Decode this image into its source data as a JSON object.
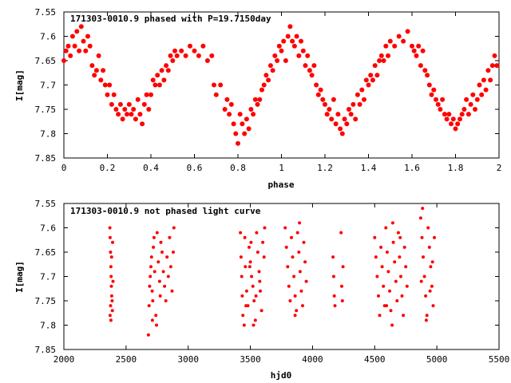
{
  "chart_data": [
    {
      "type": "scatter",
      "title": "171303-0010.9 phased with P=19.7150day",
      "xlabel": "phase",
      "ylabel": "I[mag]",
      "xlim": [
        0,
        2
      ],
      "ylim": [
        7.85,
        7.55
      ],
      "y_inverted": true,
      "xticks": [
        "0",
        "0.2",
        "0.4",
        "0.6",
        "0.8",
        "1",
        "1.2",
        "1.4",
        "1.6",
        "1.8",
        "2"
      ],
      "yticks": [
        "7.55",
        "7.6",
        "7.65",
        "7.7",
        "7.75",
        "7.8",
        "7.85"
      ],
      "marker_color": "#ff0000",
      "grid": false,
      "points": [
        [
          0.0,
          7.65
        ],
        [
          0.01,
          7.63
        ],
        [
          0.02,
          7.62
        ],
        [
          0.03,
          7.64
        ],
        [
          0.04,
          7.6
        ],
        [
          0.05,
          7.62
        ],
        [
          0.06,
          7.59
        ],
        [
          0.07,
          7.63
        ],
        [
          0.08,
          7.58
        ],
        [
          0.09,
          7.61
        ],
        [
          0.1,
          7.63
        ],
        [
          0.11,
          7.6
        ],
        [
          0.12,
          7.62
        ],
        [
          0.13,
          7.66
        ],
        [
          0.14,
          7.68
        ],
        [
          0.15,
          7.67
        ],
        [
          0.16,
          7.64
        ],
        [
          0.17,
          7.69
        ],
        [
          0.18,
          7.67
        ],
        [
          0.19,
          7.7
        ],
        [
          0.2,
          7.72
        ],
        [
          0.21,
          7.7
        ],
        [
          0.22,
          7.74
        ],
        [
          0.23,
          7.72
        ],
        [
          0.24,
          7.75
        ],
        [
          0.25,
          7.76
        ],
        [
          0.26,
          7.74
        ],
        [
          0.27,
          7.77
        ],
        [
          0.28,
          7.75
        ],
        [
          0.29,
          7.76
        ],
        [
          0.3,
          7.74
        ],
        [
          0.31,
          7.76
        ],
        [
          0.32,
          7.75
        ],
        [
          0.33,
          7.77
        ],
        [
          0.34,
          7.73
        ],
        [
          0.35,
          7.76
        ],
        [
          0.36,
          7.78
        ],
        [
          0.37,
          7.74
        ],
        [
          0.38,
          7.72
        ],
        [
          0.39,
          7.75
        ],
        [
          0.4,
          7.72
        ],
        [
          0.41,
          7.69
        ],
        [
          0.42,
          7.7
        ],
        [
          0.43,
          7.68
        ],
        [
          0.44,
          7.7
        ],
        [
          0.45,
          7.67
        ],
        [
          0.46,
          7.69
        ],
        [
          0.47,
          7.66
        ],
        [
          0.48,
          7.67
        ],
        [
          0.49,
          7.64
        ],
        [
          0.5,
          7.65
        ],
        [
          0.51,
          7.63
        ],
        [
          0.52,
          7.64
        ],
        [
          0.54,
          7.63
        ],
        [
          0.56,
          7.64
        ],
        [
          0.58,
          7.62
        ],
        [
          0.6,
          7.63
        ],
        [
          0.62,
          7.64
        ],
        [
          0.64,
          7.62
        ],
        [
          0.66,
          7.65
        ],
        [
          0.68,
          7.64
        ],
        [
          0.69,
          7.7
        ],
        [
          0.7,
          7.72
        ],
        [
          0.72,
          7.7
        ],
        [
          0.74,
          7.75
        ],
        [
          0.75,
          7.73
        ],
        [
          0.76,
          7.76
        ],
        [
          0.77,
          7.74
        ],
        [
          0.78,
          7.78
        ],
        [
          0.79,
          7.8
        ],
        [
          0.8,
          7.82
        ],
        [
          0.81,
          7.76
        ],
        [
          0.82,
          7.78
        ],
        [
          0.83,
          7.8
        ],
        [
          0.84,
          7.77
        ],
        [
          0.85,
          7.79
        ],
        [
          0.86,
          7.75
        ],
        [
          0.87,
          7.76
        ],
        [
          0.88,
          7.73
        ],
        [
          0.89,
          7.74
        ],
        [
          0.9,
          7.73
        ],
        [
          0.91,
          7.71
        ],
        [
          0.92,
          7.7
        ],
        [
          0.93,
          7.68
        ],
        [
          0.94,
          7.69
        ],
        [
          0.95,
          7.66
        ],
        [
          0.96,
          7.67
        ],
        [
          0.97,
          7.64
        ],
        [
          0.98,
          7.65
        ],
        [
          0.99,
          7.62
        ],
        [
          1.0,
          7.63
        ],
        [
          1.01,
          7.61
        ],
        [
          1.02,
          7.65
        ],
        [
          1.03,
          7.6
        ],
        [
          1.04,
          7.58
        ],
        [
          1.05,
          7.61
        ],
        [
          1.06,
          7.62
        ],
        [
          1.07,
          7.6
        ],
        [
          1.08,
          7.64
        ],
        [
          1.09,
          7.61
        ],
        [
          1.1,
          7.63
        ],
        [
          1.11,
          7.66
        ],
        [
          1.12,
          7.64
        ],
        [
          1.13,
          7.67
        ],
        [
          1.14,
          7.68
        ],
        [
          1.15,
          7.66
        ],
        [
          1.16,
          7.7
        ],
        [
          1.17,
          7.72
        ],
        [
          1.18,
          7.71
        ],
        [
          1.19,
          7.73
        ],
        [
          1.2,
          7.74
        ],
        [
          1.21,
          7.76
        ],
        [
          1.22,
          7.75
        ],
        [
          1.23,
          7.77
        ],
        [
          1.24,
          7.73
        ],
        [
          1.25,
          7.78
        ],
        [
          1.26,
          7.76
        ],
        [
          1.27,
          7.79
        ],
        [
          1.28,
          7.8
        ],
        [
          1.29,
          7.77
        ],
        [
          1.3,
          7.78
        ],
        [
          1.31,
          7.75
        ],
        [
          1.32,
          7.76
        ],
        [
          1.33,
          7.74
        ],
        [
          1.34,
          7.77
        ],
        [
          1.35,
          7.72
        ],
        [
          1.36,
          7.74
        ],
        [
          1.37,
          7.71
        ],
        [
          1.38,
          7.73
        ],
        [
          1.39,
          7.69
        ],
        [
          1.4,
          7.7
        ],
        [
          1.41,
          7.68
        ],
        [
          1.42,
          7.69
        ],
        [
          1.43,
          7.66
        ],
        [
          1.44,
          7.68
        ],
        [
          1.45,
          7.65
        ],
        [
          1.46,
          7.64
        ],
        [
          1.47,
          7.65
        ],
        [
          1.48,
          7.62
        ],
        [
          1.49,
          7.64
        ],
        [
          1.5,
          7.61
        ],
        [
          1.52,
          7.62
        ],
        [
          1.54,
          7.6
        ],
        [
          1.56,
          7.61
        ],
        [
          1.58,
          7.59
        ],
        [
          1.6,
          7.62
        ],
        [
          1.61,
          7.63
        ],
        [
          1.62,
          7.64
        ],
        [
          1.63,
          7.62
        ],
        [
          1.64,
          7.66
        ],
        [
          1.65,
          7.63
        ],
        [
          1.66,
          7.67
        ],
        [
          1.67,
          7.68
        ],
        [
          1.68,
          7.7
        ],
        [
          1.69,
          7.72
        ],
        [
          1.7,
          7.71
        ],
        [
          1.71,
          7.73
        ],
        [
          1.72,
          7.74
        ],
        [
          1.73,
          7.75
        ],
        [
          1.74,
          7.73
        ],
        [
          1.75,
          7.76
        ],
        [
          1.76,
          7.77
        ],
        [
          1.77,
          7.76
        ],
        [
          1.78,
          7.78
        ],
        [
          1.79,
          7.77
        ],
        [
          1.8,
          7.79
        ],
        [
          1.81,
          7.78
        ],
        [
          1.82,
          7.77
        ],
        [
          1.83,
          7.76
        ],
        [
          1.84,
          7.75
        ],
        [
          1.85,
          7.73
        ],
        [
          1.86,
          7.76
        ],
        [
          1.87,
          7.74
        ],
        [
          1.88,
          7.72
        ],
        [
          1.89,
          7.75
        ],
        [
          1.9,
          7.73
        ],
        [
          1.91,
          7.7
        ],
        [
          1.92,
          7.72
        ],
        [
          1.93,
          7.69
        ],
        [
          1.94,
          7.71
        ],
        [
          1.95,
          7.67
        ],
        [
          1.96,
          7.69
        ],
        [
          1.97,
          7.66
        ],
        [
          1.98,
          7.64
        ],
        [
          1.99,
          7.66
        ]
      ]
    },
    {
      "type": "scatter",
      "title": "171303-0010.9 not phased light curve",
      "xlabel": "hjd0",
      "ylabel": "I[mag]",
      "xlim": [
        2000,
        5500
      ],
      "ylim": [
        7.85,
        7.55
      ],
      "y_inverted": true,
      "xticks": [
        "2000",
        "2500",
        "3000",
        "3500",
        "4000",
        "4500",
        "5000",
        "5500"
      ],
      "yticks": [
        "7.55",
        "7.6",
        "7.65",
        "7.7",
        "7.75",
        "7.8",
        "7.85"
      ],
      "marker_color": "#ff0000",
      "grid": false,
      "points": [
        [
          2370,
          7.6
        ],
        [
          2372,
          7.62
        ],
        [
          2375,
          7.65
        ],
        [
          2378,
          7.68
        ],
        [
          2380,
          7.7
        ],
        [
          2382,
          7.72
        ],
        [
          2385,
          7.74
        ],
        [
          2388,
          7.75
        ],
        [
          2390,
          7.77
        ],
        [
          2372,
          7.78
        ],
        [
          2378,
          7.79
        ],
        [
          2384,
          7.66
        ],
        [
          2392,
          7.63
        ],
        [
          2395,
          7.71
        ],
        [
          2376,
          7.76
        ],
        [
          2680,
          7.82
        ],
        [
          2685,
          7.76
        ],
        [
          2690,
          7.72
        ],
        [
          2695,
          7.7
        ],
        [
          2700,
          7.68
        ],
        [
          2705,
          7.66
        ],
        [
          2710,
          7.73
        ],
        [
          2715,
          7.75
        ],
        [
          2720,
          7.64
        ],
        [
          2725,
          7.62
        ],
        [
          2730,
          7.69
        ],
        [
          2740,
          7.78
        ],
        [
          2745,
          7.8
        ],
        [
          2750,
          7.61
        ],
        [
          2760,
          7.67
        ],
        [
          2770,
          7.71
        ],
        [
          2775,
          7.74
        ],
        [
          2780,
          7.63
        ],
        [
          2790,
          7.65
        ],
        [
          2800,
          7.69
        ],
        [
          2810,
          7.72
        ],
        [
          2820,
          7.75
        ],
        [
          2830,
          7.66
        ],
        [
          2840,
          7.7
        ],
        [
          2850,
          7.62
        ],
        [
          2860,
          7.68
        ],
        [
          2870,
          7.73
        ],
        [
          2880,
          7.65
        ],
        [
          2885,
          7.6
        ],
        [
          2712,
          7.79
        ],
        [
          3420,
          7.61
        ],
        [
          3425,
          7.66
        ],
        [
          3430,
          7.7
        ],
        [
          3435,
          7.74
        ],
        [
          3440,
          7.78
        ],
        [
          3450,
          7.8
        ],
        [
          3455,
          7.62
        ],
        [
          3460,
          7.68
        ],
        [
          3470,
          7.73
        ],
        [
          3480,
          7.76
        ],
        [
          3490,
          7.64
        ],
        [
          3500,
          7.67
        ],
        [
          3510,
          7.7
        ],
        [
          3520,
          7.72
        ],
        [
          3530,
          7.75
        ],
        [
          3540,
          7.79
        ],
        [
          3550,
          7.61
        ],
        [
          3560,
          7.65
        ],
        [
          3570,
          7.69
        ],
        [
          3580,
          7.73
        ],
        [
          3590,
          7.77
        ],
        [
          3600,
          7.63
        ],
        [
          3610,
          7.66
        ],
        [
          3615,
          7.6
        ],
        [
          3525,
          7.8
        ],
        [
          3545,
          7.74
        ],
        [
          3575,
          7.71
        ],
        [
          3495,
          7.68
        ],
        [
          3465,
          7.76
        ],
        [
          3505,
          7.63
        ],
        [
          3780,
          7.6
        ],
        [
          3790,
          7.64
        ],
        [
          3800,
          7.68
        ],
        [
          3810,
          7.72
        ],
        [
          3820,
          7.75
        ],
        [
          3830,
          7.62
        ],
        [
          3840,
          7.66
        ],
        [
          3850,
          7.7
        ],
        [
          3860,
          7.74
        ],
        [
          3870,
          7.77
        ],
        [
          3880,
          7.61
        ],
        [
          3890,
          7.65
        ],
        [
          3900,
          7.69
        ],
        [
          3910,
          7.73
        ],
        [
          3920,
          7.76
        ],
        [
          3930,
          7.63
        ],
        [
          3940,
          7.67
        ],
        [
          3950,
          7.71
        ],
        [
          3895,
          7.59
        ],
        [
          3860,
          7.78
        ],
        [
          4165,
          7.66
        ],
        [
          4170,
          7.7
        ],
        [
          4175,
          7.74
        ],
        [
          4180,
          7.76
        ],
        [
          4230,
          7.61
        ],
        [
          4235,
          7.72
        ],
        [
          4240,
          7.75
        ],
        [
          4245,
          7.68
        ],
        [
          4500,
          7.62
        ],
        [
          4510,
          7.66
        ],
        [
          4520,
          7.7
        ],
        [
          4530,
          7.74
        ],
        [
          4540,
          7.78
        ],
        [
          4550,
          7.64
        ],
        [
          4560,
          7.68
        ],
        [
          4570,
          7.72
        ],
        [
          4580,
          7.76
        ],
        [
          4590,
          7.6
        ],
        [
          4600,
          7.65
        ],
        [
          4610,
          7.69
        ],
        [
          4620,
          7.73
        ],
        [
          4630,
          7.77
        ],
        [
          4640,
          7.8
        ],
        [
          4650,
          7.63
        ],
        [
          4660,
          7.67
        ],
        [
          4670,
          7.71
        ],
        [
          4680,
          7.75
        ],
        [
          4690,
          7.61
        ],
        [
          4700,
          7.66
        ],
        [
          4710,
          7.7
        ],
        [
          4720,
          7.74
        ],
        [
          4730,
          7.78
        ],
        [
          4740,
          7.64
        ],
        [
          4750,
          7.68
        ],
        [
          4760,
          7.72
        ],
        [
          4645,
          7.59
        ],
        [
          4595,
          7.76
        ],
        [
          4705,
          7.62
        ],
        [
          4870,
          7.58
        ],
        [
          4880,
          7.62
        ],
        [
          4890,
          7.66
        ],
        [
          4900,
          7.7
        ],
        [
          4910,
          7.74
        ],
        [
          4920,
          7.78
        ],
        [
          4930,
          7.6
        ],
        [
          4940,
          7.64
        ],
        [
          4950,
          7.68
        ],
        [
          4960,
          7.72
        ],
        [
          4970,
          7.76
        ],
        [
          4980,
          7.62
        ],
        [
          4885,
          7.56
        ],
        [
          4915,
          7.79
        ],
        [
          4945,
          7.73
        ],
        [
          4965,
          7.67
        ],
        [
          4875,
          7.71
        ]
      ]
    }
  ]
}
